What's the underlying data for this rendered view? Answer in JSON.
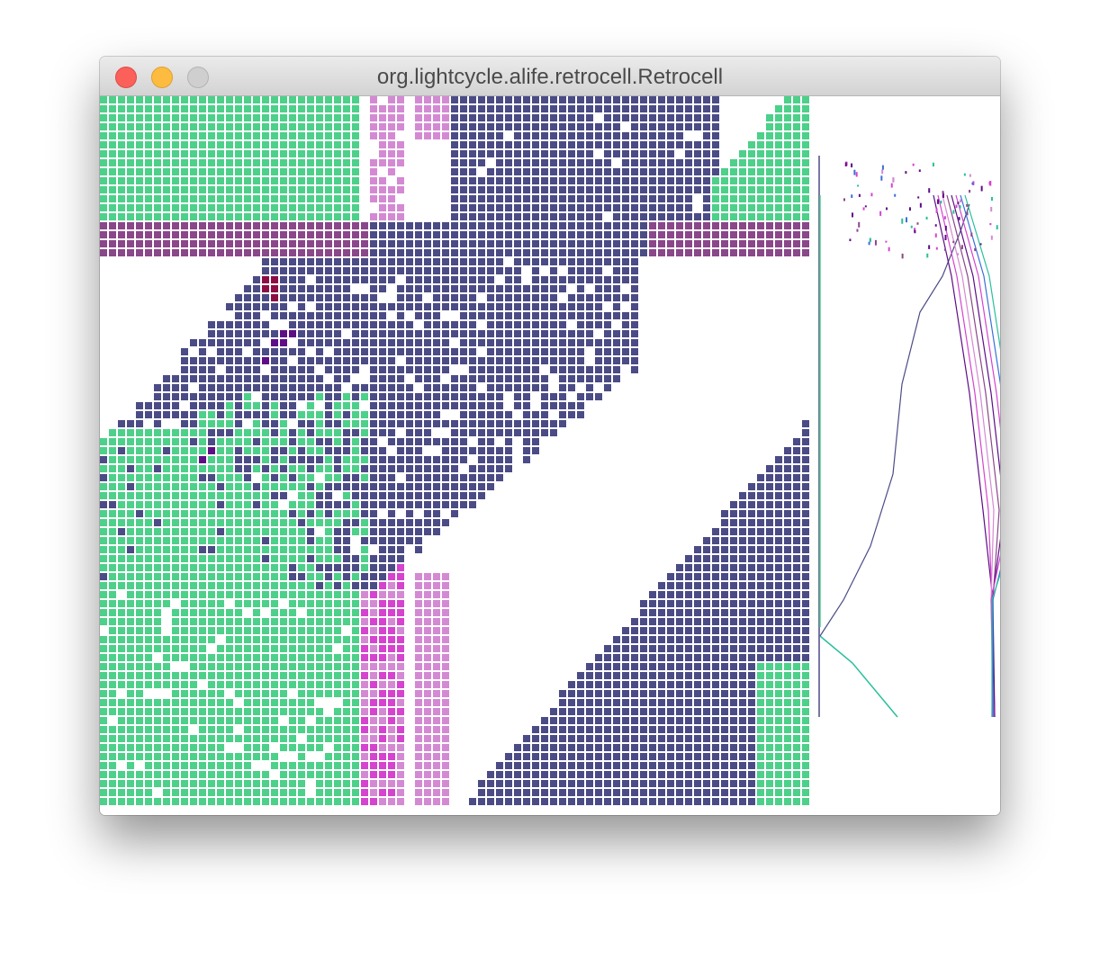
{
  "window": {
    "title": "org.lightcycle.alife.retrocell.Retrocell"
  },
  "colors": {
    "green": "#4dd08a",
    "navy": "#4b4b86",
    "plum": "#8a4789",
    "magenta": "#d543cf",
    "lilac": "#d48ad3",
    "maroon": "#8b0d44",
    "indigo": "#5e0d86",
    "teal": "#2bbf9b",
    "blue": "#3a6fd8"
  }
}
